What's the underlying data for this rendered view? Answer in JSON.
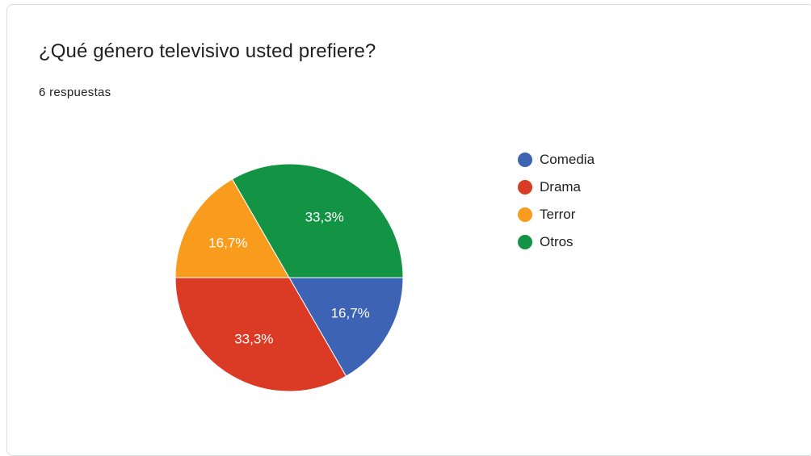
{
  "question": {
    "title": "¿Qué género televisivo usted prefiere?",
    "response_count": "6 respuestas"
  },
  "chart_data": {
    "type": "pie",
    "categories": [
      "Comedia",
      "Drama",
      "Terror",
      "Otros"
    ],
    "values": [
      1,
      2,
      1,
      2
    ],
    "percent_labels": [
      "16,7%",
      "33,3%",
      "16,7%",
      "33,3%"
    ],
    "colors": [
      "#3d63b5",
      "#db3a24",
      "#f99c1e",
      "#139444"
    ],
    "legend_position": "right",
    "start_angle": "3 o'clock",
    "direction": "clockwise"
  }
}
